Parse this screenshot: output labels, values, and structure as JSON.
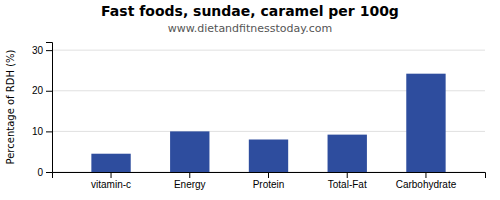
{
  "chart_data": {
    "type": "bar",
    "title": "Fast foods, sundae, caramel per 100g",
    "subtitle": "www.dietandfitnesstoday.com",
    "categories": [
      "vitamin-c",
      "Energy",
      "Protein",
      "Total-Fat",
      "Carbohydrate"
    ],
    "values": [
      4.5,
      10.0,
      8.0,
      9.2,
      24.2
    ],
    "color": "#2e4d9e",
    "ylabel": "Percentage of RDH (%)",
    "ylim": [
      0,
      32
    ],
    "yticks": [
      0,
      10,
      20,
      30
    ],
    "grid": true
  }
}
